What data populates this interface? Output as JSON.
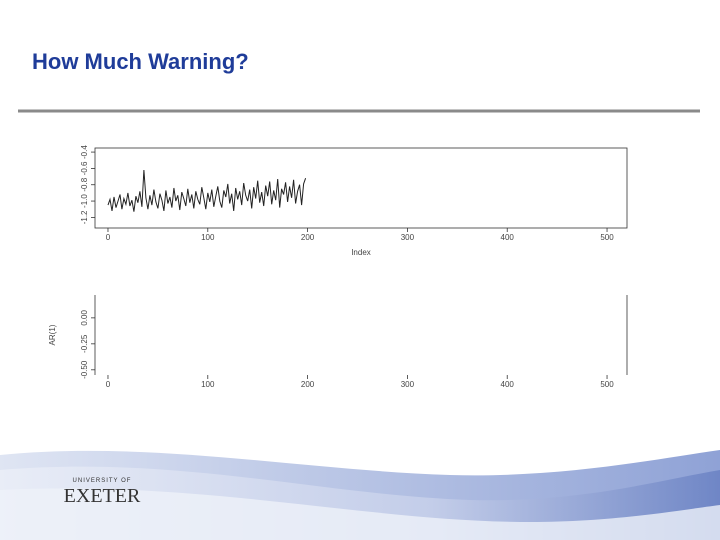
{
  "slide": {
    "title": "How Much Warning?",
    "logo_top": "UNIVERSITY OF",
    "logo_name": "EXETER"
  },
  "chart_data": [
    {
      "type": "line",
      "xlabel": "Index",
      "x": [
        0,
        2,
        4,
        6,
        8,
        10,
        12,
        14,
        16,
        18,
        20,
        22,
        24,
        26,
        28,
        30,
        32,
        34,
        36,
        38,
        40,
        42,
        44,
        46,
        48,
        50,
        52,
        54,
        56,
        58,
        60,
        62,
        64,
        66,
        68,
        70,
        72,
        74,
        76,
        78,
        80,
        82,
        84,
        86,
        88,
        90,
        92,
        94,
        96,
        98,
        100,
        102,
        104,
        106,
        108,
        110,
        112,
        114,
        116,
        118,
        120,
        122,
        124,
        126,
        128,
        130,
        132,
        134,
        136,
        138,
        140,
        142,
        144,
        146,
        148,
        150,
        152,
        154,
        156,
        158,
        160,
        162,
        164,
        166,
        168,
        170,
        172,
        174,
        176,
        178,
        180,
        182,
        184,
        186,
        188,
        190,
        192,
        194,
        196,
        198
      ],
      "values": [
        -1.05,
        -0.98,
        -1.12,
        -0.95,
        -1.08,
        -1.0,
        -0.92,
        -1.1,
        -0.97,
        -1.04,
        -0.9,
        -1.06,
        -0.99,
        -1.13,
        -0.94,
        -1.02,
        -0.88,
        -1.07,
        -0.62,
        -0.96,
        -1.1,
        -0.93,
        -1.05,
        -0.86,
        -1.01,
        -1.09,
        -0.91,
        -0.99,
        -1.12,
        -0.87,
        -1.03,
        -0.95,
        -1.08,
        -0.84,
        -1.0,
        -0.93,
        -1.11,
        -0.89,
        -0.97,
        -1.06,
        -0.85,
        -1.02,
        -0.92,
        -1.09,
        -0.88,
        -0.98,
        -1.04,
        -0.83,
        -0.96,
        -1.1,
        -0.9,
        -1.01,
        -0.86,
        -1.07,
        -0.94,
        -0.82,
        -1.0,
        -1.08,
        -0.87,
        -0.95,
        -0.79,
        -1.03,
        -0.91,
        -1.12,
        -0.84,
        -0.98,
        -0.88,
        -1.05,
        -0.78,
        -0.93,
        -1.0,
        -0.86,
        -1.09,
        -0.83,
        -0.97,
        -0.75,
        -1.02,
        -0.89,
        -1.06,
        -0.81,
        -0.94,
        -0.76,
        -1.04,
        -0.87,
        -0.99,
        -0.73,
        -1.08,
        -0.85,
        -0.92,
        -0.77,
        -1.01,
        -0.82,
        -0.96,
        -0.74,
        -1.03,
        -0.88,
        -0.8,
        -1.05,
        -0.79,
        -0.72
      ],
      "color": "#222222",
      "xlim": [
        -13,
        520
      ],
      "xticks": [
        0,
        100,
        200,
        300,
        400,
        500
      ],
      "ylim": [
        -1.33,
        -0.35
      ],
      "yticks": [
        -1.2,
        {
          "value": -1,
          "label": "-1.0"
        },
        -0.8,
        -0.6,
        -0.4
      ]
    },
    {
      "type": "line",
      "ylabel": "AR(1)",
      "xlim": [
        -13,
        520
      ],
      "xticks": [
        0,
        100,
        200,
        300,
        400,
        500
      ],
      "ylim": [
        -0.55,
        0.22
      ],
      "yticks": [
        {
          "value": -0.5,
          "label": "-0.50"
        },
        {
          "value": -0.25,
          "label": "-0.25"
        },
        {
          "value": 0,
          "label": "0.00"
        }
      ]
    }
  ]
}
